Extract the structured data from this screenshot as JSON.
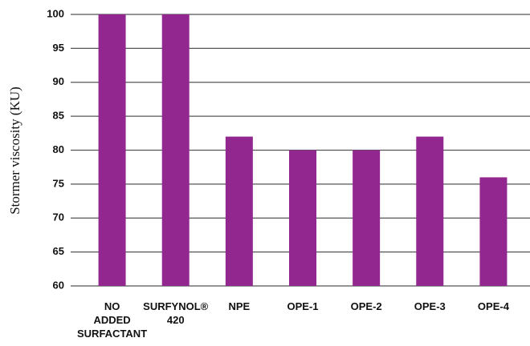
{
  "chart_data": {
    "type": "bar",
    "y_label": "Stormer viscosity (KU)",
    "categories": [
      "NO ADDED SURFACTANT",
      "SURFYNOL® 420",
      "NPE",
      "OPE-1",
      "OPE-2",
      "OPE-3",
      "OPE-4"
    ],
    "values": [
      100,
      100,
      82,
      80,
      80,
      82,
      76
    ],
    "color": "#92278f",
    "ylim": [
      60,
      100
    ],
    "yticks": [
      60,
      65,
      70,
      75,
      80,
      85,
      90,
      95,
      100
    ],
    "grid": true
  }
}
